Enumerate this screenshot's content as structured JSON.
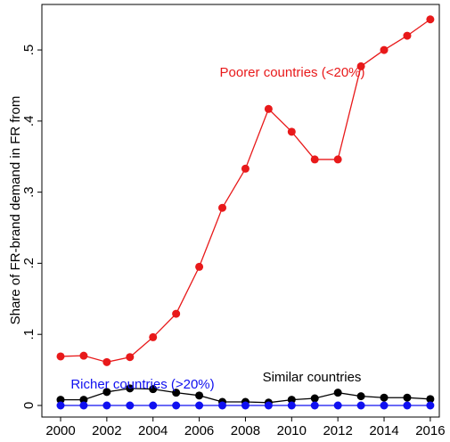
{
  "chart_data": {
    "type": "line",
    "y_label": "Share of FR-brand demand in FR from",
    "x": [
      2000,
      2001,
      2002,
      2003,
      2004,
      2005,
      2006,
      2007,
      2008,
      2009,
      2010,
      2011,
      2012,
      2013,
      2014,
      2015,
      2016
    ],
    "series": [
      {
        "name": "Poorer countries (<20%)",
        "color": "#e8191a",
        "values": [
          0.069,
          0.07,
          0.061,
          0.068,
          0.096,
          0.129,
          0.195,
          0.278,
          0.333,
          0.417,
          0.385,
          0.346,
          0.346,
          0.477,
          0.5,
          0.52,
          0.543
        ]
      },
      {
        "name": "Similar countries",
        "color": "#000000",
        "values": [
          0.008,
          0.008,
          0.019,
          0.024,
          0.023,
          0.018,
          0.014,
          0.005,
          0.005,
          0.004,
          0.008,
          0.01,
          0.018,
          0.013,
          0.011,
          0.011,
          0.009
        ]
      },
      {
        "name": "Richer countries (>20%)",
        "color": "#1010f0",
        "values": [
          0,
          0,
          0,
          0,
          0,
          0,
          0,
          0,
          0,
          0,
          0,
          0,
          0,
          0,
          0,
          0,
          0
        ]
      }
    ],
    "xlim": [
      1999.19,
      2016.39
    ],
    "xticks": [
      2000,
      2002,
      2004,
      2006,
      2008,
      2010,
      2012,
      2014,
      2016
    ],
    "ylim": [
      -0.0163,
      0.564
    ],
    "yticks": [
      0,
      {
        "value": 0.1,
        "label": ".1"
      },
      {
        "value": 0.2,
        "label": ".2"
      },
      {
        "value": 0.3,
        "label": ".3"
      },
      {
        "value": 0.4,
        "label": ".4"
      },
      {
        "value": 0.5,
        "label": ".5"
      }
    ],
    "grid": false
  }
}
